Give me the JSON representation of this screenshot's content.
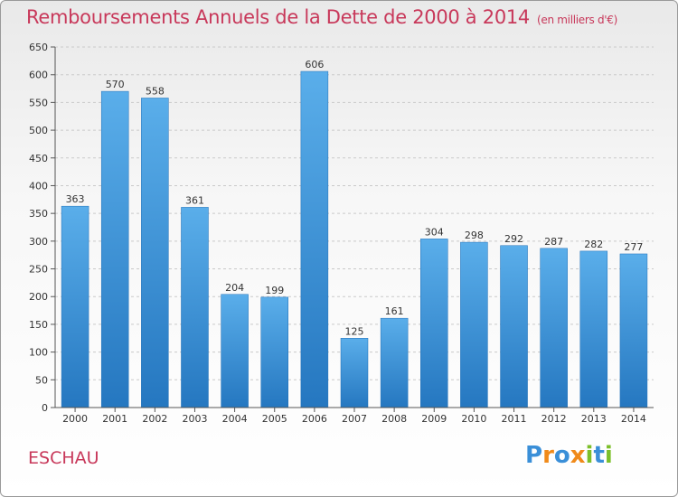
{
  "header": {
    "title": "Remboursements Annuels de la Dette de 2000 à 2014",
    "unit": "(en milliers d'€)"
  },
  "footer": {
    "commune": "ESCHAU",
    "logo": "Proxiti",
    "logo_letters": [
      {
        "char": "P",
        "color": "#3a8fd8"
      },
      {
        "char": "r",
        "color": "#f08a1a"
      },
      {
        "char": "o",
        "color": "#3a8fd8"
      },
      {
        "char": "x",
        "color": "#f08a1a"
      },
      {
        "char": "i",
        "color": "#7cbf2a"
      },
      {
        "char": "t",
        "color": "#3a8fd8"
      },
      {
        "char": "i",
        "color": "#7cbf2a"
      }
    ]
  },
  "chart_data": {
    "type": "bar",
    "title": "Remboursements Annuels de la Dette de 2000 à 2014",
    "categories": [
      "2000",
      "2001",
      "2002",
      "2003",
      "2004",
      "2005",
      "2006",
      "2007",
      "2008",
      "2009",
      "2010",
      "2011",
      "2012",
      "2013",
      "2014"
    ],
    "values": [
      363,
      570,
      558,
      361,
      204,
      199,
      606,
      125,
      161,
      304,
      298,
      292,
      287,
      282,
      277
    ],
    "ylim": [
      0,
      650
    ],
    "yticks": [
      0,
      50,
      100,
      150,
      200,
      250,
      300,
      350,
      400,
      450,
      500,
      550,
      600,
      650
    ],
    "grid": true,
    "bar_color": "#4a9fe0",
    "bar_color_dark": "#1f6fb8"
  }
}
